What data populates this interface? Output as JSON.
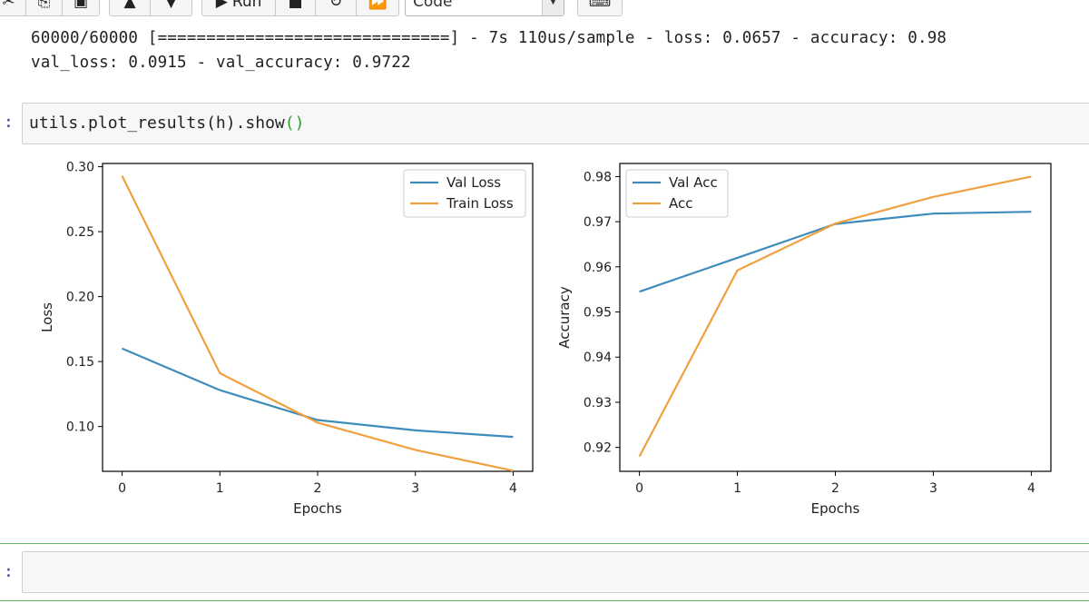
{
  "toolbar": {
    "run_label": "Run",
    "cell_type": "Code",
    "icons": [
      "cut-icon",
      "copy-icon",
      "paste-icon",
      "move-up-icon",
      "move-down-icon",
      "run-icon",
      "stop-icon",
      "restart-icon",
      "fast-forward-icon",
      "keyboard-icon"
    ]
  },
  "output": {
    "line1": "60000/60000 [==============================] - 7s 110us/sample - loss: 0.0657 - accuracy: 0.98",
    "line2": "val_loss: 0.0915 - val_accuracy: 0.9722"
  },
  "cell": {
    "prompt": ":",
    "code_main": "utils.plot_results(h).show",
    "code_parens": "()"
  },
  "empty_cell": {
    "prompt": ":"
  },
  "colors": {
    "series_blue": "#3f8cba",
    "series_orange": "#f0a040",
    "prompt_blue": "#303f9f",
    "selection_green": "#66bb6a"
  },
  "chart_data": [
    {
      "type": "line",
      "xlabel": "Epochs",
      "ylabel": "Loss",
      "x": [
        0,
        1,
        2,
        3,
        4
      ],
      "xticks": [
        "0",
        "1",
        "2",
        "3",
        "4"
      ],
      "yticks": [
        "0.10",
        "0.15",
        "0.20",
        "0.25",
        "0.30"
      ],
      "ytick_values": [
        0.1,
        0.15,
        0.2,
        0.25,
        0.3
      ],
      "xlim": [
        -0.2,
        4.2
      ],
      "ylim": [
        0.0655,
        0.3025
      ],
      "legend_position": "top-right",
      "grid": false,
      "series": [
        {
          "name": "Val Loss",
          "values": [
            0.16,
            0.128,
            0.105,
            0.097,
            0.092
          ],
          "color": "#3f8cba"
        },
        {
          "name": "Train Loss",
          "values": [
            0.293,
            0.141,
            0.103,
            0.082,
            0.066
          ],
          "color": "#f0a040"
        }
      ]
    },
    {
      "type": "line",
      "xlabel": "Epochs",
      "ylabel": "Accuracy",
      "x": [
        0,
        1,
        2,
        3,
        4
      ],
      "xticks": [
        "0",
        "1",
        "2",
        "3",
        "4"
      ],
      "yticks": [
        "0.92",
        "0.93",
        "0.94",
        "0.95",
        "0.96",
        "0.97",
        "0.98"
      ],
      "ytick_values": [
        0.92,
        0.93,
        0.94,
        0.95,
        0.96,
        0.97,
        0.98
      ],
      "xlim": [
        -0.2,
        4.2
      ],
      "ylim": [
        0.9147,
        0.9829
      ],
      "legend_position": "top-left",
      "grid": false,
      "series": [
        {
          "name": "Val Acc",
          "values": [
            0.9545,
            0.962,
            0.9695,
            0.9718,
            0.9722
          ],
          "color": "#3f8cba"
        },
        {
          "name": "Acc",
          "values": [
            0.918,
            0.9592,
            0.9696,
            0.9755,
            0.98
          ],
          "color": "#f0a040"
        }
      ]
    }
  ]
}
